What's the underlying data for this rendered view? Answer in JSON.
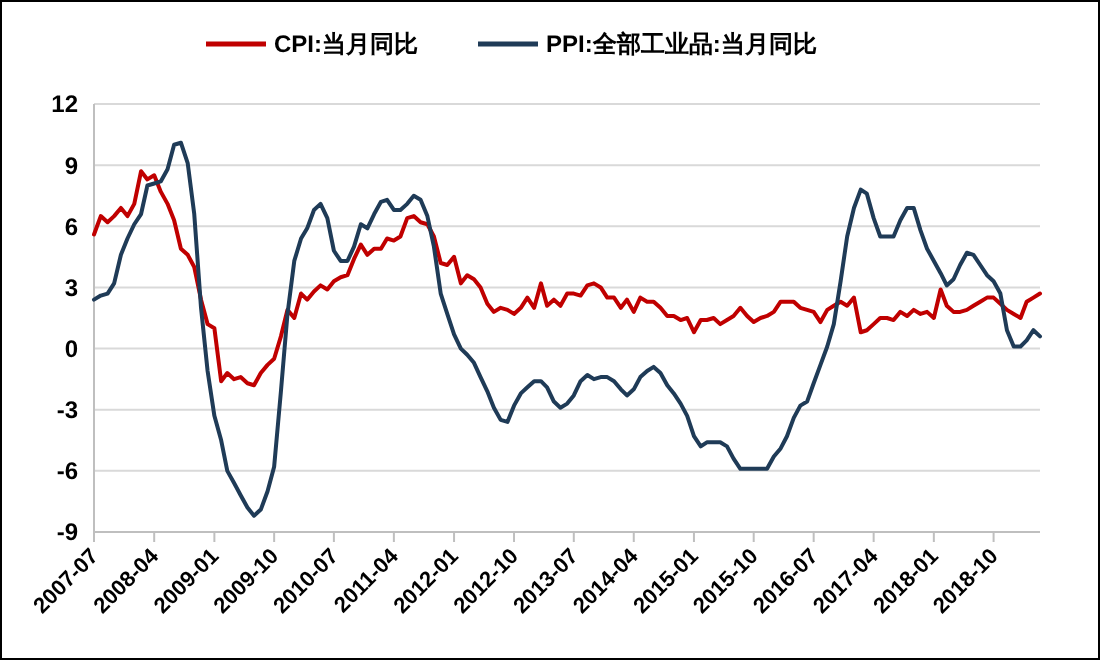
{
  "chart_data": {
    "type": "line",
    "x": [
      "2007-07",
      "2007-08",
      "2007-09",
      "2007-10",
      "2007-11",
      "2007-12",
      "2008-01",
      "2008-02",
      "2008-03",
      "2008-04",
      "2008-05",
      "2008-06",
      "2008-07",
      "2008-08",
      "2008-09",
      "2008-10",
      "2008-11",
      "2008-12",
      "2009-01",
      "2009-02",
      "2009-03",
      "2009-04",
      "2009-05",
      "2009-06",
      "2009-07",
      "2009-08",
      "2009-09",
      "2009-10",
      "2009-11",
      "2009-12",
      "2010-01",
      "2010-02",
      "2010-03",
      "2010-04",
      "2010-05",
      "2010-06",
      "2010-07",
      "2010-08",
      "2010-09",
      "2010-10",
      "2010-11",
      "2010-12",
      "2011-01",
      "2011-02",
      "2011-03",
      "2011-04",
      "2011-05",
      "2011-06",
      "2011-07",
      "2011-08",
      "2011-09",
      "2011-10",
      "2011-11",
      "2011-12",
      "2012-01",
      "2012-02",
      "2012-03",
      "2012-04",
      "2012-05",
      "2012-06",
      "2012-07",
      "2012-08",
      "2012-09",
      "2012-10",
      "2012-11",
      "2012-12",
      "2013-01",
      "2013-02",
      "2013-03",
      "2013-04",
      "2013-05",
      "2013-06",
      "2013-07",
      "2013-08",
      "2013-09",
      "2013-10",
      "2013-11",
      "2013-12",
      "2014-01",
      "2014-02",
      "2014-03",
      "2014-04",
      "2014-05",
      "2014-06",
      "2014-07",
      "2014-08",
      "2014-09",
      "2014-10",
      "2014-11",
      "2014-12",
      "2015-01",
      "2015-02",
      "2015-03",
      "2015-04",
      "2015-05",
      "2015-06",
      "2015-07",
      "2015-08",
      "2015-09",
      "2015-10",
      "2015-11",
      "2015-12",
      "2016-01",
      "2016-02",
      "2016-03",
      "2016-04",
      "2016-05",
      "2016-06",
      "2016-07",
      "2016-08",
      "2016-09",
      "2016-10",
      "2016-11",
      "2016-12",
      "2017-01",
      "2017-02",
      "2017-03",
      "2017-04",
      "2017-05",
      "2017-06",
      "2017-07",
      "2017-08",
      "2017-09",
      "2017-10",
      "2017-11",
      "2017-12",
      "2018-01",
      "2018-02",
      "2018-03",
      "2018-04",
      "2018-05",
      "2018-06",
      "2018-07",
      "2018-08",
      "2018-09",
      "2018-10",
      "2018-11",
      "2018-12",
      "2019-01",
      "2019-02",
      "2019-03",
      "2019-04",
      "2019-05"
    ],
    "series": [
      {
        "name": "CPI:当月同比",
        "color": "#c00000",
        "values": [
          5.6,
          6.5,
          6.2,
          6.5,
          6.9,
          6.5,
          7.1,
          8.7,
          8.3,
          8.5,
          7.7,
          7.1,
          6.3,
          4.9,
          4.6,
          4.0,
          2.4,
          1.2,
          1.0,
          -1.6,
          -1.2,
          -1.5,
          -1.4,
          -1.7,
          -1.8,
          -1.2,
          -0.8,
          -0.5,
          0.6,
          1.9,
          1.5,
          2.7,
          2.4,
          2.8,
          3.1,
          2.9,
          3.3,
          3.5,
          3.6,
          4.4,
          5.1,
          4.6,
          4.9,
          4.9,
          5.4,
          5.3,
          5.5,
          6.4,
          6.5,
          6.2,
          6.1,
          5.5,
          4.2,
          4.1,
          4.5,
          3.2,
          3.6,
          3.4,
          3.0,
          2.2,
          1.8,
          2.0,
          1.9,
          1.7,
          2.0,
          2.5,
          2.0,
          3.2,
          2.1,
          2.4,
          2.1,
          2.7,
          2.7,
          2.6,
          3.1,
          3.2,
          3.0,
          2.5,
          2.5,
          2.0,
          2.4,
          1.8,
          2.5,
          2.3,
          2.3,
          2.0,
          1.6,
          1.6,
          1.4,
          1.5,
          0.8,
          1.4,
          1.4,
          1.5,
          1.2,
          1.4,
          1.6,
          2.0,
          1.6,
          1.3,
          1.5,
          1.6,
          1.8,
          2.3,
          2.3,
          2.3,
          2.0,
          1.9,
          1.8,
          1.3,
          1.9,
          2.1,
          2.3,
          2.1,
          2.5,
          0.8,
          0.9,
          1.2,
          1.5,
          1.5,
          1.4,
          1.8,
          1.6,
          1.9,
          1.7,
          1.8,
          1.5,
          2.9,
          2.1,
          1.8,
          1.8,
          1.9,
          2.1,
          2.3,
          2.5,
          2.5,
          2.2,
          1.9,
          1.7,
          1.5,
          2.3,
          2.5,
          2.7
        ]
      },
      {
        "name": "PPI:全部工业品:当月同比",
        "color": "#1f3b57",
        "values": [
          2.4,
          2.6,
          2.7,
          3.2,
          4.6,
          5.4,
          6.1,
          6.6,
          8.0,
          8.1,
          8.2,
          8.8,
          10.0,
          10.1,
          9.1,
          6.6,
          2.0,
          -1.1,
          -3.3,
          -4.5,
          -6.0,
          -6.6,
          -7.2,
          -7.8,
          -8.2,
          -7.9,
          -7.0,
          -5.8,
          -2.1,
          1.7,
          4.3,
          5.4,
          5.9,
          6.8,
          7.1,
          6.4,
          4.8,
          4.3,
          4.3,
          5.0,
          6.1,
          5.9,
          6.6,
          7.2,
          7.3,
          6.8,
          6.8,
          7.1,
          7.5,
          7.3,
          6.5,
          5.0,
          2.7,
          1.7,
          0.7,
          0.0,
          -0.3,
          -0.7,
          -1.4,
          -2.1,
          -2.9,
          -3.5,
          -3.6,
          -2.8,
          -2.2,
          -1.9,
          -1.6,
          -1.6,
          -1.9,
          -2.6,
          -2.9,
          -2.7,
          -2.3,
          -1.6,
          -1.3,
          -1.5,
          -1.4,
          -1.4,
          -1.6,
          -2.0,
          -2.3,
          -2.0,
          -1.4,
          -1.1,
          -0.9,
          -1.2,
          -1.8,
          -2.2,
          -2.7,
          -3.3,
          -4.3,
          -4.8,
          -4.6,
          -4.6,
          -4.6,
          -4.8,
          -5.4,
          -5.9,
          -5.9,
          -5.9,
          -5.9,
          -5.9,
          -5.3,
          -4.9,
          -4.3,
          -3.4,
          -2.8,
          -2.6,
          -1.7,
          -0.8,
          0.1,
          1.2,
          3.3,
          5.5,
          6.9,
          7.8,
          7.6,
          6.4,
          5.5,
          5.5,
          5.5,
          6.3,
          6.9,
          6.9,
          5.8,
          4.9,
          4.3,
          3.7,
          3.1,
          3.4,
          4.1,
          4.7,
          4.6,
          4.1,
          3.6,
          3.3,
          2.7,
          0.9,
          0.1,
          0.1,
          0.4,
          0.9,
          0.6
        ]
      }
    ],
    "xlim": [
      "2007-07",
      "2019-05"
    ],
    "xticks": [
      "2007-07",
      "2008-04",
      "2009-01",
      "2009-10",
      "2010-07",
      "2011-04",
      "2012-01",
      "2012-10",
      "2013-07",
      "2014-04",
      "2015-01",
      "2015-10",
      "2016-07",
      "2017-04",
      "2018-01",
      "2018-10"
    ],
    "ylim": [
      -9,
      12
    ],
    "yticks": [
      -9,
      -6,
      -3,
      0,
      3,
      6,
      9,
      12
    ],
    "grid": "y",
    "legend": "top",
    "line_style": "solid",
    "marker": "none"
  }
}
